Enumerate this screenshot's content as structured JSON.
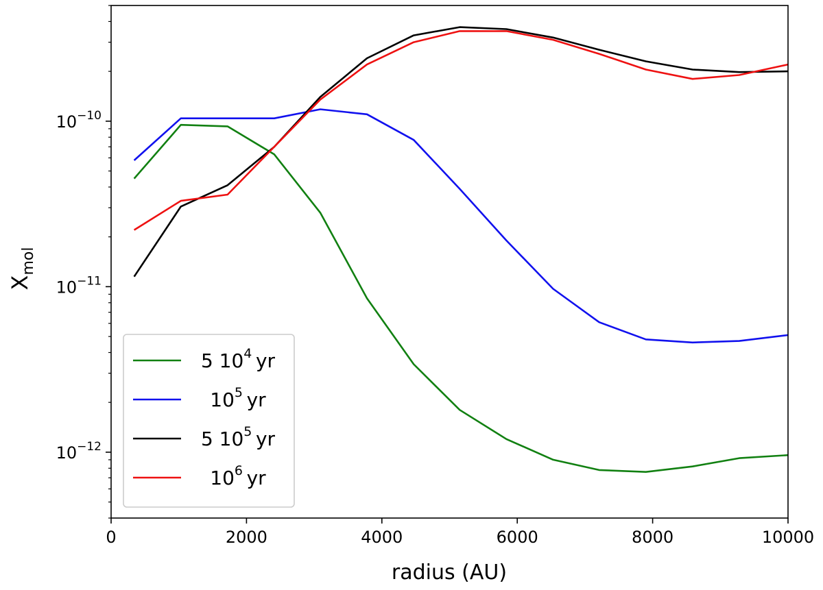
{
  "chart_data": {
    "type": "line",
    "title": "",
    "xlabel": "radius (AU)",
    "ylabel": "X",
    "ylabel_subscript": "mol",
    "x_scale": "linear",
    "y_scale": "log",
    "xlim": [
      0,
      10000
    ],
    "ylim": [
      4e-13,
      5e-10
    ],
    "x_ticks": [
      {
        "value": 0,
        "label": "0"
      },
      {
        "value": 2000,
        "label": "2000"
      },
      {
        "value": 4000,
        "label": "4000"
      },
      {
        "value": 6000,
        "label": "6000"
      },
      {
        "value": 8000,
        "label": "8000"
      },
      {
        "value": 10000,
        "label": "10000"
      }
    ],
    "y_ticks": [
      {
        "value": 1e-12,
        "base": "10",
        "exp": "−12"
      },
      {
        "value": 1e-11,
        "base": "10",
        "exp": "−11"
      },
      {
        "value": 1e-10,
        "base": "10",
        "exp": "−10"
      }
    ],
    "grid": false,
    "legend_position": "lower-left",
    "x": [
      340,
      1030,
      1720,
      2410,
      3090,
      3780,
      4470,
      5150,
      5840,
      6530,
      7210,
      7900,
      8590,
      9280,
      10000
    ],
    "series": [
      {
        "name": "5 10⁴ yr",
        "label_main": "5 10",
        "label_exp": "4",
        "label_unit": "yr",
        "color": "#118011",
        "values": [
          4.5e-11,
          9.5e-11,
          9.3e-11,
          6.3e-11,
          2.8e-11,
          8.5e-12,
          3.4e-12,
          1.8e-12,
          1.2e-12,
          9e-13,
          7.8e-13,
          7.6e-13,
          8.2e-13,
          9.2e-13,
          9.6e-13
        ]
      },
      {
        "name": "10⁵ yr",
        "label_main": "10",
        "label_exp": "5",
        "label_unit": "yr",
        "color": "#1111ee",
        "values": [
          5.8e-11,
          1.04e-10,
          1.04e-10,
          1.04e-10,
          1.18e-10,
          1.1e-10,
          7.7e-11,
          3.9e-11,
          1.9e-11,
          9.7e-12,
          6.1e-12,
          4.8e-12,
          4.6e-12,
          4.7e-12,
          5.1e-12
        ]
      },
      {
        "name": "5 10⁵ yr",
        "label_main": "5 10",
        "label_exp": "5",
        "label_unit": "yr",
        "color": "#000000",
        "values": [
          1.15e-11,
          3.05e-11,
          4.1e-11,
          7e-11,
          1.4e-10,
          2.4e-10,
          3.3e-10,
          3.7e-10,
          3.6e-10,
          3.2e-10,
          2.7e-10,
          2.3e-10,
          2.05e-10,
          1.98e-10,
          2e-10
        ]
      },
      {
        "name": "10⁶ yr",
        "label_main": "10",
        "label_exp": "6",
        "label_unit": "yr",
        "color": "#ee1111",
        "values": [
          2.2e-11,
          3.3e-11,
          3.6e-11,
          7e-11,
          1.35e-10,
          2.2e-10,
          3e-10,
          3.5e-10,
          3.5e-10,
          3.1e-10,
          2.55e-10,
          2.05e-10,
          1.8e-10,
          1.9e-10,
          2.2e-10
        ]
      }
    ]
  }
}
